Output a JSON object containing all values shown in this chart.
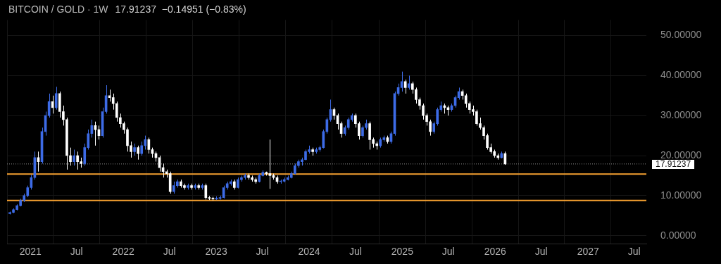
{
  "chart_data": {
    "type": "candlestick",
    "title": "BITCOIN / GOLD · 1W",
    "subtitle": "17.91237  −0.14951 (−0.83%)",
    "x": [
      "2020-10-12",
      "2020-10-26",
      "2020-11-09",
      "2020-11-23",
      "2020-12-07",
      "2020-12-21",
      "2021-01-04",
      "2021-01-18",
      "2021-02-01",
      "2021-02-15",
      "2021-03-01",
      "2021-03-15",
      "2021-03-29",
      "2021-04-12",
      "2021-04-26",
      "2021-05-10",
      "2021-05-24",
      "2021-06-07",
      "2021-06-21",
      "2021-07-05",
      "2021-07-19",
      "2021-08-02",
      "2021-08-16",
      "2021-08-30",
      "2021-09-13",
      "2021-09-27",
      "2021-10-11",
      "2021-10-25",
      "2021-11-08",
      "2021-11-22",
      "2021-12-06",
      "2021-12-20",
      "2022-01-03",
      "2022-01-17",
      "2022-01-31",
      "2022-02-14",
      "2022-02-28",
      "2022-03-14",
      "2022-03-28",
      "2022-04-11",
      "2022-04-25",
      "2022-05-09",
      "2022-05-23",
      "2022-06-06",
      "2022-06-20",
      "2022-07-04",
      "2022-07-18",
      "2022-08-01",
      "2022-08-15",
      "2022-08-29",
      "2022-09-12",
      "2022-09-26",
      "2022-10-10",
      "2022-10-24",
      "2022-11-07",
      "2022-11-21",
      "2022-12-05",
      "2022-12-19",
      "2023-01-02",
      "2023-01-16",
      "2023-01-30",
      "2023-02-13",
      "2023-02-27",
      "2023-03-13",
      "2023-03-27",
      "2023-04-10",
      "2023-04-24",
      "2023-05-08",
      "2023-05-22",
      "2023-06-05",
      "2023-06-19",
      "2023-07-03",
      "2023-07-17",
      "2023-07-31",
      "2023-08-14",
      "2023-08-28",
      "2023-09-11",
      "2023-09-25",
      "2023-10-09",
      "2023-10-23",
      "2023-11-06",
      "2023-11-20",
      "2023-12-04",
      "2023-12-18",
      "2024-01-01",
      "2024-01-15",
      "2024-01-29",
      "2024-02-12",
      "2024-02-26",
      "2024-03-11",
      "2024-03-25",
      "2024-04-08",
      "2024-04-22",
      "2024-05-06",
      "2024-05-20",
      "2024-06-03",
      "2024-06-17",
      "2024-07-01",
      "2024-07-15",
      "2024-07-29",
      "2024-08-12",
      "2024-08-26",
      "2024-09-09",
      "2024-09-23",
      "2024-10-07",
      "2024-10-21",
      "2024-11-04",
      "2024-11-18",
      "2024-12-02",
      "2024-12-16",
      "2024-12-30",
      "2025-01-13",
      "2025-01-27",
      "2025-02-10",
      "2025-02-24",
      "2025-03-10",
      "2025-03-24",
      "2025-04-07",
      "2025-04-21",
      "2025-05-05",
      "2025-05-19",
      "2025-06-02",
      "2025-06-16",
      "2025-06-30",
      "2025-07-14",
      "2025-07-28",
      "2025-08-11",
      "2025-08-25",
      "2025-09-08",
      "2025-09-22",
      "2025-10-06",
      "2025-10-20",
      "2025-11-03",
      "2025-11-17",
      "2025-12-01",
      "2025-12-15",
      "2025-12-29",
      "2026-01-12",
      "2026-01-26",
      "2026-02-09"
    ],
    "ohlc": [
      [
        5.5,
        6.0,
        5.3,
        5.8
      ],
      [
        5.8,
        6.8,
        5.6,
        6.5
      ],
      [
        6.5,
        7.8,
        6.3,
        7.5
      ],
      [
        7.5,
        9.2,
        7.3,
        8.8
      ],
      [
        8.8,
        10.5,
        8.4,
        10.0
      ],
      [
        10.0,
        12.5,
        9.6,
        12.0
      ],
      [
        12.0,
        15.2,
        11.5,
        14.5
      ],
      [
        14.5,
        21.0,
        14.0,
        19.5
      ],
      [
        19.5,
        21.0,
        16.0,
        18.5
      ],
      [
        18.5,
        27.0,
        18.0,
        26.0
      ],
      [
        26.0,
        31.0,
        25.0,
        30.0
      ],
      [
        30.0,
        35.5,
        29.5,
        33.5
      ],
      [
        33.5,
        35.0,
        30.5,
        32.0
      ],
      [
        32.0,
        37.2,
        31.5,
        35.5
      ],
      [
        35.5,
        36.0,
        29.5,
        31.0
      ],
      [
        31.0,
        32.5,
        27.5,
        29.0
      ],
      [
        29.0,
        29.5,
        16.5,
        20.0
      ],
      [
        20.0,
        22.0,
        17.5,
        18.5
      ],
      [
        18.5,
        21.5,
        17.5,
        20.0
      ],
      [
        20.0,
        21.0,
        16.5,
        18.5
      ],
      [
        18.5,
        19.5,
        17.0,
        18.0
      ],
      [
        18.0,
        23.0,
        17.5,
        22.0
      ],
      [
        22.0,
        26.5,
        21.5,
        25.5
      ],
      [
        25.5,
        29.0,
        24.5,
        27.5
      ],
      [
        27.5,
        28.5,
        22.5,
        26.5
      ],
      [
        26.5,
        27.5,
        24.0,
        25.0
      ],
      [
        25.0,
        32.0,
        24.5,
        31.0
      ],
      [
        31.0,
        37.6,
        30.5,
        35.0
      ],
      [
        35.0,
        36.5,
        33.5,
        34.5
      ],
      [
        34.5,
        35.5,
        31.5,
        33.0
      ],
      [
        33.0,
        33.5,
        28.5,
        29.5
      ],
      [
        29.5,
        30.5,
        27.0,
        28.0
      ],
      [
        28.0,
        28.5,
        25.5,
        26.5
      ],
      [
        26.5,
        27.0,
        21.0,
        22.5
      ],
      [
        22.5,
        23.5,
        19.5,
        21.0
      ],
      [
        21.0,
        23.0,
        20.0,
        22.0
      ],
      [
        22.0,
        22.5,
        19.0,
        20.5
      ],
      [
        20.5,
        23.5,
        20.0,
        22.5
      ],
      [
        22.5,
        25.0,
        21.5,
        24.0
      ],
      [
        24.0,
        24.5,
        20.5,
        21.5
      ],
      [
        21.5,
        22.0,
        19.5,
        20.5
      ],
      [
        20.5,
        21.0,
        18.5,
        19.5
      ],
      [
        19.5,
        20.0,
        16.0,
        17.0
      ],
      [
        17.0,
        18.0,
        14.5,
        16.0
      ],
      [
        16.0,
        16.5,
        14.5,
        15.5
      ],
      [
        15.5,
        16.0,
        10.5,
        11.0
      ],
      [
        11.0,
        13.5,
        10.5,
        12.5
      ],
      [
        12.5,
        14.0,
        12.0,
        13.5
      ],
      [
        13.5,
        14.0,
        12.0,
        12.5
      ],
      [
        12.5,
        13.0,
        11.5,
        12.0
      ],
      [
        12.0,
        13.0,
        11.5,
        12.5
      ],
      [
        12.5,
        13.0,
        11.5,
        12.0
      ],
      [
        12.0,
        13.0,
        11.5,
        12.5
      ],
      [
        12.5,
        13.0,
        11.5,
        12.0
      ],
      [
        12.0,
        13.0,
        11.5,
        12.5
      ],
      [
        12.5,
        13.0,
        9.0,
        9.5
      ],
      [
        9.5,
        9.9,
        8.9,
        9.3
      ],
      [
        9.3,
        9.7,
        8.8,
        9.2
      ],
      [
        9.2,
        9.8,
        8.9,
        9.3
      ],
      [
        9.3,
        10.0,
        9.0,
        9.5
      ],
      [
        9.5,
        12.5,
        9.3,
        12.0
      ],
      [
        12.0,
        13.5,
        11.5,
        13.0
      ],
      [
        13.0,
        14.0,
        12.5,
        13.5
      ],
      [
        13.5,
        14.0,
        11.5,
        12.0
      ],
      [
        12.0,
        14.5,
        11.8,
        14.0
      ],
      [
        14.0,
        15.0,
        13.5,
        14.5
      ],
      [
        14.5,
        15.5,
        14.0,
        15.0
      ],
      [
        15.0,
        15.5,
        14.0,
        14.5
      ],
      [
        14.5,
        15.0,
        13.5,
        14.0
      ],
      [
        14.0,
        14.5,
        13.0,
        13.5
      ],
      [
        13.5,
        15.5,
        13.3,
        15.0
      ],
      [
        15.0,
        16.3,
        14.8,
        15.8
      ],
      [
        15.8,
        16.0,
        15.0,
        15.5
      ],
      [
        15.5,
        24.0,
        11.7,
        15.0
      ],
      [
        15.0,
        15.5,
        14.0,
        14.5
      ],
      [
        14.5,
        15.0,
        13.0,
        13.5
      ],
      [
        13.5,
        14.0,
        13.0,
        13.6
      ],
      [
        13.6,
        14.5,
        13.3,
        14.0
      ],
      [
        14.0,
        15.0,
        13.8,
        14.5
      ],
      [
        14.5,
        16.0,
        14.3,
        15.5
      ],
      [
        15.5,
        18.0,
        15.3,
        17.5
      ],
      [
        17.5,
        19.0,
        17.0,
        18.5
      ],
      [
        18.5,
        19.5,
        17.5,
        19.0
      ],
      [
        19.0,
        21.5,
        18.8,
        21.0
      ],
      [
        21.0,
        22.5,
        20.5,
        21.5
      ],
      [
        21.5,
        22.0,
        20.0,
        21.0
      ],
      [
        21.0,
        22.0,
        20.5,
        21.5
      ],
      [
        21.5,
        22.5,
        21.0,
        22.0
      ],
      [
        22.0,
        26.5,
        21.8,
        26.0
      ],
      [
        26.0,
        29.5,
        25.5,
        29.0
      ],
      [
        29.0,
        34.0,
        28.5,
        31.5
      ],
      [
        31.5,
        32.0,
        29.0,
        30.0
      ],
      [
        30.0,
        30.5,
        26.5,
        28.0
      ],
      [
        28.0,
        28.5,
        24.5,
        25.5
      ],
      [
        25.5,
        27.5,
        25.0,
        27.0
      ],
      [
        27.0,
        29.5,
        26.5,
        29.0
      ],
      [
        29.0,
        30.5,
        28.5,
        30.0
      ],
      [
        30.0,
        30.5,
        27.0,
        28.0
      ],
      [
        28.0,
        28.5,
        24.0,
        25.0
      ],
      [
        25.0,
        27.5,
        24.5,
        27.0
      ],
      [
        27.0,
        29.0,
        26.5,
        28.0
      ],
      [
        28.0,
        28.5,
        21.5,
        24.0
      ],
      [
        24.0,
        24.5,
        22.0,
        23.0
      ],
      [
        23.0,
        23.5,
        21.5,
        22.5
      ],
      [
        22.5,
        24.5,
        22.0,
        24.0
      ],
      [
        24.0,
        25.0,
        23.5,
        24.5
      ],
      [
        24.5,
        25.0,
        23.0,
        23.5
      ],
      [
        23.5,
        26.0,
        23.0,
        25.5
      ],
      [
        25.5,
        36.0,
        25.0,
        35.5
      ],
      [
        35.5,
        38.0,
        35.0,
        37.0
      ],
      [
        37.0,
        41.0,
        36.0,
        38.5
      ],
      [
        38.5,
        39.0,
        35.5,
        37.0
      ],
      [
        37.0,
        40.0,
        36.5,
        38.0
      ],
      [
        38.0,
        38.5,
        35.5,
        36.5
      ],
      [
        36.5,
        37.0,
        33.0,
        34.0
      ],
      [
        34.0,
        34.5,
        31.5,
        32.5
      ],
      [
        32.5,
        33.0,
        29.0,
        30.0
      ],
      [
        30.0,
        30.5,
        27.5,
        28.5
      ],
      [
        28.5,
        29.0,
        25.0,
        26.0
      ],
      [
        26.0,
        28.5,
        25.5,
        28.0
      ],
      [
        28.0,
        32.0,
        27.5,
        31.5
      ],
      [
        31.5,
        33.5,
        31.0,
        32.5
      ],
      [
        32.5,
        33.0,
        30.5,
        32.0
      ],
      [
        32.0,
        32.5,
        30.0,
        31.5
      ],
      [
        31.5,
        33.0,
        31.0,
        32.5
      ],
      [
        32.5,
        35.0,
        32.0,
        34.5
      ],
      [
        34.5,
        37.0,
        34.0,
        36.0
      ],
      [
        36.0,
        36.5,
        34.0,
        35.0
      ],
      [
        35.0,
        35.5,
        32.0,
        33.0
      ],
      [
        33.0,
        33.5,
        30.5,
        31.5
      ],
      [
        31.5,
        32.5,
        30.0,
        31.0
      ],
      [
        31.0,
        31.5,
        27.5,
        28.0
      ],
      [
        28.0,
        29.5,
        26.5,
        27.0
      ],
      [
        27.0,
        27.5,
        24.0,
        25.0
      ],
      [
        25.0,
        25.5,
        21.5,
        22.0
      ],
      [
        22.0,
        23.0,
        20.5,
        21.0
      ],
      [
        21.0,
        21.5,
        19.5,
        20.0
      ],
      [
        20.0,
        20.5,
        19.0,
        19.5
      ],
      [
        19.5,
        21.0,
        19.3,
        20.5
      ],
      [
        20.5,
        21.0,
        17.7,
        17.9
      ]
    ],
    "colors": [
      "#3d6be6",
      "#3d6be6",
      "#3d6be6",
      "#3d6be6",
      "#3d6be6",
      "#3d6be6",
      "#3d6be6",
      "#3d6be6",
      "#ffffff",
      "#3d6be6",
      "#3d6be6",
      "#3d6be6",
      "#ffffff",
      "#3d6be6",
      "#ffffff",
      "#ffffff",
      "#ffffff",
      "#ffffff",
      "#3d6be6",
      "#ffffff",
      "#ffffff",
      "#3d6be6",
      "#3d6be6",
      "#3d6be6",
      "#ffffff",
      "#ffffff",
      "#3d6be6",
      "#3d6be6",
      "#ffffff",
      "#ffffff",
      "#ffffff",
      "#ffffff",
      "#ffffff",
      "#ffffff",
      "#ffffff",
      "#3d6be6",
      "#ffffff",
      "#3d6be6",
      "#3d6be6",
      "#ffffff",
      "#ffffff",
      "#ffffff",
      "#ffffff",
      "#ffffff",
      "#ffffff",
      "#ffffff",
      "#3d6be6",
      "#3d6be6",
      "#ffffff",
      "#ffffff",
      "#3d6be6",
      "#ffffff",
      "#3d6be6",
      "#ffffff",
      "#3d6be6",
      "#ffffff",
      "#ffffff",
      "#ffffff",
      "#3d6be6",
      "#3d6be6",
      "#3d6be6",
      "#3d6be6",
      "#3d6be6",
      "#ffffff",
      "#3d6be6",
      "#3d6be6",
      "#3d6be6",
      "#ffffff",
      "#ffffff",
      "#ffffff",
      "#3d6be6",
      "#3d6be6",
      "#ffffff",
      "#ffffff",
      "#ffffff",
      "#ffffff",
      "#3d6be6",
      "#3d6be6",
      "#3d6be6",
      "#3d6be6",
      "#3d6be6",
      "#3d6be6",
      "#3d6be6",
      "#3d6be6",
      "#3d6be6",
      "#ffffff",
      "#3d6be6",
      "#3d6be6",
      "#3d6be6",
      "#3d6be6",
      "#3d6be6",
      "#ffffff",
      "#ffffff",
      "#ffffff",
      "#3d6be6",
      "#3d6be6",
      "#3d6be6",
      "#ffffff",
      "#ffffff",
      "#3d6be6",
      "#3d6be6",
      "#ffffff",
      "#ffffff",
      "#ffffff",
      "#3d6be6",
      "#3d6be6",
      "#ffffff",
      "#3d6be6",
      "#3d6be6",
      "#3d6be6",
      "#3d6be6",
      "#ffffff",
      "#3d6be6",
      "#ffffff",
      "#ffffff",
      "#ffffff",
      "#ffffff",
      "#ffffff",
      "#ffffff",
      "#3d6be6",
      "#3d6be6",
      "#3d6be6",
      "#ffffff",
      "#ffffff",
      "#3d6be6",
      "#3d6be6",
      "#3d6be6",
      "#ffffff",
      "#ffffff",
      "#ffffff",
      "#ffffff",
      "#ffffff",
      "#ffffff",
      "#ffffff",
      "#ffffff",
      "#ffffff",
      "#ffffff",
      "#ffffff",
      "#3d6be6",
      "#ffffff"
    ],
    "xlim": [
      "2020-10-01",
      "2027-08-18"
    ],
    "xticks": [
      {
        "value": "2021-01-01",
        "label": "2021"
      },
      {
        "value": "2021-07-01",
        "label": "Jul"
      },
      {
        "value": "2022-01-01",
        "label": "2022"
      },
      {
        "value": "2022-07-01",
        "label": "Jul"
      },
      {
        "value": "2023-01-01",
        "label": "2023"
      },
      {
        "value": "2023-07-01",
        "label": "Jul"
      },
      {
        "value": "2024-01-01",
        "label": "2024"
      },
      {
        "value": "2024-07-01",
        "label": "Jul"
      },
      {
        "value": "2025-01-01",
        "label": "2025"
      },
      {
        "value": "2025-07-01",
        "label": "Jul"
      },
      {
        "value": "2026-01-01",
        "label": "2026"
      },
      {
        "value": "2026-07-01",
        "label": "Jul"
      },
      {
        "value": "2027-01-01",
        "label": "2027"
      },
      {
        "value": "2027-07-01",
        "label": "Jul"
      }
    ],
    "ylim": [
      -2.1,
      53.9
    ],
    "yticks": [
      {
        "value": 0,
        "label": "0.00000"
      },
      {
        "value": 10,
        "label": "10.00000"
      },
      {
        "value": 20,
        "label": "20.00000"
      },
      {
        "value": 30,
        "label": "30.00000"
      },
      {
        "value": 40,
        "label": "40.00000"
      },
      {
        "value": 50,
        "label": "50.00000"
      }
    ],
    "ref_lines": [
      {
        "axis": "y",
        "value": 15.4,
        "color": "#f5a030"
      },
      {
        "axis": "y",
        "value": 8.8,
        "color": "#f5a030"
      },
      {
        "axis": "y",
        "value": 17.91237,
        "label": "17.91237",
        "color": "#8a8a8a",
        "line_style": "dotted"
      }
    ],
    "grid": true
  }
}
